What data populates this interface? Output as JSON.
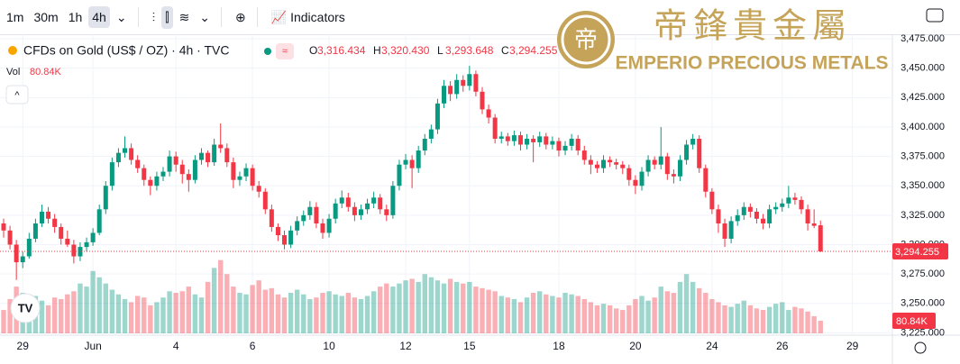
{
  "toolbar": {
    "intervals": [
      "1m",
      "30m",
      "1h",
      "4h"
    ],
    "indicators": "Indicators"
  },
  "legend": {
    "symbol": "CFDs on Gold (US$ / OZ) · 4h · TVC",
    "readout": [
      {
        "key": "O",
        "value": "3,316.434"
      },
      {
        "key": "H",
        "value": "3,320.430"
      },
      {
        "key": "L",
        "value": "3,293.648"
      },
      {
        "key": "C",
        "value": "3,294.255"
      }
    ],
    "volume_key": "Vol",
    "volume_value": "80.84K"
  },
  "logo": {
    "chinese": "帝鋒貴金屬",
    "english": "EMPERIO PRECIOUS METALS"
  },
  "chart_data": {
    "type": "candlestick",
    "up_color": "#089981",
    "down_color": "#f23645",
    "grid": true,
    "ylim": [
      3223,
      3485
    ],
    "yticks": [
      {
        "value": 3225,
        "label": "3,225.000"
      },
      {
        "value": 3250,
        "label": "3,250.000"
      },
      {
        "value": 3275,
        "label": "3,275.000"
      },
      {
        "value": 3300,
        "label": "3,300.000"
      },
      {
        "value": 3325,
        "label": "3,325.000"
      },
      {
        "value": 3350,
        "label": "3,350.000"
      },
      {
        "value": 3375,
        "label": "3,375.000"
      },
      {
        "value": 3400,
        "label": "3,400.000"
      },
      {
        "value": 3425,
        "label": "3,425.000"
      },
      {
        "value": 3450,
        "label": "3,450.000"
      },
      {
        "value": 3475,
        "label": "3,475.000"
      }
    ],
    "last_price_label": "3,294.255",
    "volume_label": "80.84K",
    "categories": [
      null,
      null,
      null,
      "29",
      null,
      null,
      null,
      null,
      null,
      null,
      null,
      null,
      null,
      null,
      "Jun",
      null,
      null,
      null,
      null,
      null,
      null,
      null,
      null,
      null,
      null,
      null,
      null,
      "4",
      null,
      null,
      null,
      null,
      null,
      null,
      null,
      null,
      null,
      null,
      null,
      "6",
      null,
      null,
      null,
      null,
      null,
      null,
      null,
      null,
      null,
      null,
      null,
      "10",
      null,
      null,
      null,
      null,
      null,
      null,
      null,
      null,
      null,
      null,
      null,
      "12",
      null,
      null,
      null,
      null,
      null,
      null,
      null,
      null,
      null,
      "15",
      null,
      null,
      null,
      null,
      null,
      null,
      null,
      null,
      null,
      null,
      null,
      null,
      null,
      "18",
      null,
      null,
      null,
      null,
      null,
      null,
      null,
      null,
      null,
      null,
      null,
      "20",
      null,
      null,
      null,
      null,
      null,
      null,
      null,
      null,
      null,
      null,
      null,
      "24",
      null,
      null,
      null,
      null,
      null,
      null,
      null,
      null,
      null,
      null,
      "26",
      null,
      null,
      null,
      null,
      null,
      null,
      null,
      null,
      null,
      null,
      "29"
    ],
    "ohlc": [
      [
        3318,
        3322,
        3306,
        3312
      ],
      [
        3312,
        3316,
        3296,
        3300
      ],
      [
        3300,
        3304,
        3270,
        3285
      ],
      [
        3285,
        3294,
        3280,
        3290
      ],
      [
        3290,
        3310,
        3288,
        3305
      ],
      [
        3305,
        3322,
        3302,
        3318
      ],
      [
        3318,
        3334,
        3315,
        3328
      ],
      [
        3328,
        3332,
        3318,
        3322
      ],
      [
        3322,
        3326,
        3310,
        3315
      ],
      [
        3315,
        3318,
        3300,
        3305
      ],
      [
        3305,
        3312,
        3298,
        3300
      ],
      [
        3300,
        3304,
        3284,
        3290
      ],
      [
        3290,
        3302,
        3286,
        3298
      ],
      [
        3298,
        3306,
        3294,
        3302
      ],
      [
        3302,
        3314,
        3299,
        3310
      ],
      [
        3310,
        3334,
        3308,
        3330
      ],
      [
        3330,
        3354,
        3326,
        3350
      ],
      [
        3350,
        3374,
        3346,
        3370
      ],
      [
        3370,
        3382,
        3366,
        3378
      ],
      [
        3378,
        3392,
        3374,
        3382
      ],
      [
        3382,
        3386,
        3368,
        3372
      ],
      [
        3372,
        3376,
        3361,
        3365
      ],
      [
        3365,
        3368,
        3350,
        3355
      ],
      [
        3355,
        3358,
        3342,
        3350
      ],
      [
        3350,
        3362,
        3346,
        3358
      ],
      [
        3358,
        3366,
        3354,
        3362
      ],
      [
        3362,
        3380,
        3358,
        3375
      ],
      [
        3375,
        3379,
        3362,
        3368
      ],
      [
        3368,
        3372,
        3352,
        3360
      ],
      [
        3360,
        3364,
        3345,
        3355
      ],
      [
        3355,
        3376,
        3352,
        3372
      ],
      [
        3372,
        3382,
        3368,
        3378
      ],
      [
        3378,
        3380,
        3366,
        3370
      ],
      [
        3370,
        3390,
        3367,
        3385
      ],
      [
        3385,
        3403,
        3378,
        3382
      ],
      [
        3382,
        3386,
        3366,
        3370
      ],
      [
        3370,
        3374,
        3348,
        3355
      ],
      [
        3355,
        3362,
        3350,
        3358
      ],
      [
        3358,
        3369,
        3354,
        3365
      ],
      [
        3365,
        3368,
        3346,
        3350
      ],
      [
        3350,
        3354,
        3340,
        3345
      ],
      [
        3345,
        3348,
        3326,
        3330
      ],
      [
        3330,
        3334,
        3311,
        3315
      ],
      [
        3315,
        3318,
        3303,
        3308
      ],
      [
        3308,
        3312,
        3296,
        3300
      ],
      [
        3300,
        3316,
        3297,
        3312
      ],
      [
        3312,
        3324,
        3308,
        3320
      ],
      [
        3320,
        3329,
        3316,
        3325
      ],
      [
        3325,
        3337,
        3321,
        3332
      ],
      [
        3332,
        3336,
        3314,
        3318
      ],
      [
        3318,
        3322,
        3305,
        3310
      ],
      [
        3310,
        3326,
        3306,
        3322
      ],
      [
        3322,
        3339,
        3318,
        3335
      ],
      [
        3335,
        3346,
        3331,
        3340
      ],
      [
        3340,
        3344,
        3328,
        3332
      ],
      [
        3332,
        3336,
        3320,
        3325
      ],
      [
        3325,
        3334,
        3321,
        3330
      ],
      [
        3330,
        3339,
        3326,
        3335
      ],
      [
        3335,
        3345,
        3331,
        3340
      ],
      [
        3340,
        3343,
        3326,
        3330
      ],
      [
        3330,
        3334,
        3320,
        3325
      ],
      [
        3325,
        3354,
        3322,
        3350
      ],
      [
        3350,
        3372,
        3346,
        3368
      ],
      [
        3368,
        3377,
        3364,
        3372
      ],
      [
        3372,
        3376,
        3348,
        3365
      ],
      [
        3365,
        3384,
        3361,
        3380
      ],
      [
        3380,
        3394,
        3376,
        3390
      ],
      [
        3390,
        3402,
        3386,
        3398
      ],
      [
        3398,
        3424,
        3394,
        3420
      ],
      [
        3420,
        3440,
        3416,
        3435
      ],
      [
        3435,
        3439,
        3422,
        3428
      ],
      [
        3428,
        3445,
        3424,
        3440
      ],
      [
        3440,
        3444,
        3430,
        3435
      ],
      [
        3435,
        3452,
        3431,
        3445
      ],
      [
        3445,
        3448,
        3426,
        3430
      ],
      [
        3430,
        3434,
        3411,
        3415
      ],
      [
        3415,
        3419,
        3403,
        3408
      ],
      [
        3408,
        3411,
        3386,
        3390
      ],
      [
        3390,
        3396,
        3386,
        3392
      ],
      [
        3392,
        3395,
        3384,
        3388
      ],
      [
        3388,
        3397,
        3384,
        3393
      ],
      [
        3393,
        3396,
        3380,
        3385
      ],
      [
        3385,
        3394,
        3381,
        3390
      ],
      [
        3390,
        3393,
        3370,
        3387
      ],
      [
        3387,
        3396,
        3383,
        3392
      ],
      [
        3392,
        3395,
        3381,
        3385
      ],
      [
        3385,
        3392,
        3381,
        3388
      ],
      [
        3388,
        3391,
        3375,
        3380
      ],
      [
        3380,
        3388,
        3376,
        3384
      ],
      [
        3384,
        3394,
        3380,
        3390
      ],
      [
        3390,
        3393,
        3376,
        3380
      ],
      [
        3380,
        3384,
        3368,
        3372
      ],
      [
        3372,
        3376,
        3360,
        3368
      ],
      [
        3368,
        3371,
        3361,
        3365
      ],
      [
        3365,
        3376,
        3361,
        3372
      ],
      [
        3372,
        3375,
        3366,
        3370
      ],
      [
        3370,
        3373,
        3364,
        3368
      ],
      [
        3368,
        3371,
        3360,
        3365
      ],
      [
        3365,
        3368,
        3350,
        3355
      ],
      [
        3355,
        3359,
        3343,
        3350
      ],
      [
        3350,
        3366,
        3346,
        3362
      ],
      [
        3362,
        3376,
        3358,
        3372
      ],
      [
        3372,
        3375,
        3364,
        3368
      ],
      [
        3368,
        3400,
        3364,
        3375
      ],
      [
        3375,
        3378,
        3355,
        3360
      ],
      [
        3360,
        3364,
        3352,
        3358
      ],
      [
        3358,
        3376,
        3354,
        3372
      ],
      [
        3372,
        3389,
        3368,
        3385
      ],
      [
        3385,
        3394,
        3381,
        3390
      ],
      [
        3390,
        3393,
        3361,
        3365
      ],
      [
        3365,
        3368,
        3340,
        3345
      ],
      [
        3345,
        3348,
        3326,
        3330
      ],
      [
        3330,
        3334,
        3310,
        3318
      ],
      [
        3318,
        3322,
        3298,
        3305
      ],
      [
        3305,
        3324,
        3301,
        3320
      ],
      [
        3320,
        3330,
        3316,
        3325
      ],
      [
        3325,
        3336,
        3321,
        3332
      ],
      [
        3332,
        3335,
        3323,
        3328
      ],
      [
        3328,
        3331,
        3318,
        3322
      ],
      [
        3322,
        3326,
        3313,
        3318
      ],
      [
        3318,
        3334,
        3314,
        3330
      ],
      [
        3330,
        3336,
        3326,
        3332
      ],
      [
        3332,
        3339,
        3328,
        3335
      ],
      [
        3335,
        3350,
        3331,
        3340
      ],
      [
        3340,
        3344,
        3334,
        3338
      ],
      [
        3338,
        3341,
        3326,
        3330
      ],
      [
        3330,
        3334,
        3312,
        3318
      ],
      [
        3318,
        3330,
        3314,
        3316
      ],
      [
        3316.434,
        3320.43,
        3293.648,
        3294.255
      ],
      null,
      null,
      null,
      null,
      null
    ],
    "volume": [
      150,
      220,
      300,
      260,
      250,
      240,
      210,
      180,
      230,
      220,
      250,
      270,
      320,
      300,
      400,
      360,
      320,
      280,
      250,
      220,
      200,
      240,
      230,
      180,
      200,
      230,
      270,
      260,
      270,
      300,
      250,
      230,
      330,
      420,
      470,
      380,
      300,
      260,
      250,
      310,
      340,
      280,
      290,
      250,
      230,
      260,
      280,
      250,
      220,
      230,
      260,
      270,
      250,
      240,
      260,
      230,
      220,
      240,
      270,
      300,
      320,
      300,
      320,
      340,
      350,
      330,
      380,
      360,
      340,
      320,
      350,
      330,
      320,
      330,
      300,
      290,
      280,
      270,
      240,
      230,
      220,
      200,
      230,
      260,
      270,
      250,
      240,
      230,
      260,
      250,
      240,
      220,
      200,
      180,
      190,
      180,
      160,
      150,
      180,
      220,
      240,
      210,
      230,
      300,
      270,
      260,
      330,
      380,
      330,
      290,
      260,
      220,
      200,
      180,
      170,
      190,
      210,
      180,
      160,
      150,
      170,
      190,
      200,
      150,
      170,
      160,
      140,
      110,
      80.84,
      null,
      null,
      null,
      null,
      null
    ]
  }
}
